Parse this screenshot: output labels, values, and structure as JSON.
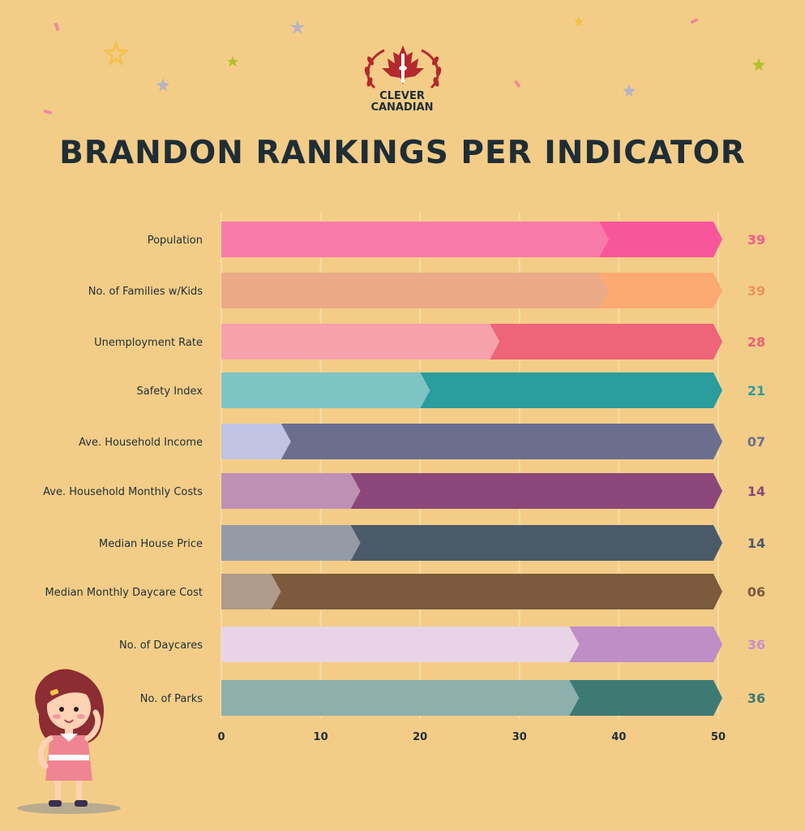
{
  "brand": {
    "line1": "CLEVER",
    "line2": "CANADIAN"
  },
  "chart_data": {
    "type": "bar",
    "orientation": "horizontal",
    "title": "BRANDON RANKINGS PER INDICATOR",
    "xlim": [
      0,
      50
    ],
    "xticks": [
      "0",
      "10",
      "20",
      "30",
      "40",
      "50"
    ],
    "grid": true,
    "categories": [
      "Population",
      "No. of Families w/Kids",
      "Unemployment Rate",
      "Safety Index",
      "Ave. Household Income",
      "Ave. Household Monthly Costs",
      "Median House Price",
      "Median Monthly Daycare Cost",
      "No. of Daycares",
      "No. of Parks"
    ],
    "values": [
      39,
      39,
      28,
      21,
      7,
      14,
      14,
      6,
      36,
      36
    ],
    "value_labels": [
      "39",
      "39",
      "28",
      "21",
      "07",
      "14",
      "14",
      "06",
      "36",
      "36"
    ],
    "colors": [
      {
        "light": "#f87aa8",
        "dark": "#f7579a",
        "label": "#f05d8c"
      },
      {
        "light": "#ebaa86",
        "dark": "#fdaa72",
        "label": "#e8935f"
      },
      {
        "light": "#f6a1ac",
        "dark": "#ee6478",
        "label": "#ec5f72"
      },
      {
        "light": "#7fc4c4",
        "dark": "#2a9d9d",
        "label": "#2a9d9d"
      },
      {
        "light": "#c0c3e3",
        "dark": "#6c6e90",
        "label": "#6c6e90"
      },
      {
        "light": "#be90b3",
        "dark": "#8b4779",
        "label": "#8b4779"
      },
      {
        "light": "#949ba7",
        "dark": "#4b5a69",
        "label": "#4b5a69"
      },
      {
        "light": "#ae9b89",
        "dark": "#7b5a3d",
        "label": "#7b5a3d"
      },
      {
        "light": "#e8d4e6",
        "dark": "#be8ec6",
        "label": "#c58fca"
      },
      {
        "light": "#8db0ac",
        "dark": "#3e7a74",
        "label": "#3e7a74"
      }
    ]
  }
}
